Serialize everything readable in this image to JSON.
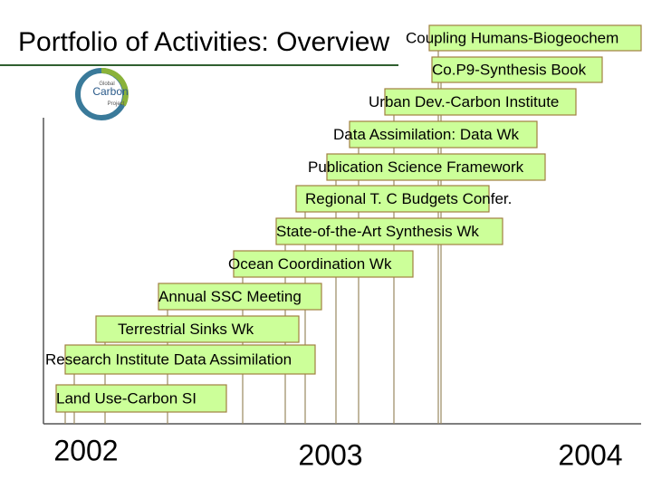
{
  "title": "Portfolio of Activities: Overview",
  "logo": {
    "lines": [
      "Global",
      "Carbon",
      "Project"
    ]
  },
  "activities": [
    {
      "label": "Coupling Humans-Biogeochem"
    },
    {
      "label": "Co.P9-Synthesis Book"
    },
    {
      "label": "Urban Dev.-Carbon Institute"
    },
    {
      "label": "Data Assimilation: Data Wk"
    },
    {
      "label": "Publication Science Framework"
    },
    {
      "label": "Regional T. C Budgets Confer."
    },
    {
      "label": "State-of-the-Art Synthesis Wk"
    },
    {
      "label": "Ocean Coordination Wk"
    },
    {
      "label": "Annual SSC Meeting"
    },
    {
      "label": "Terrestrial Sinks Wk"
    },
    {
      "label": "Research Institute Data Assimilation"
    },
    {
      "label": "Land Use-Carbon SI"
    }
  ],
  "years": [
    "2002",
    "2003",
    "2004"
  ]
}
